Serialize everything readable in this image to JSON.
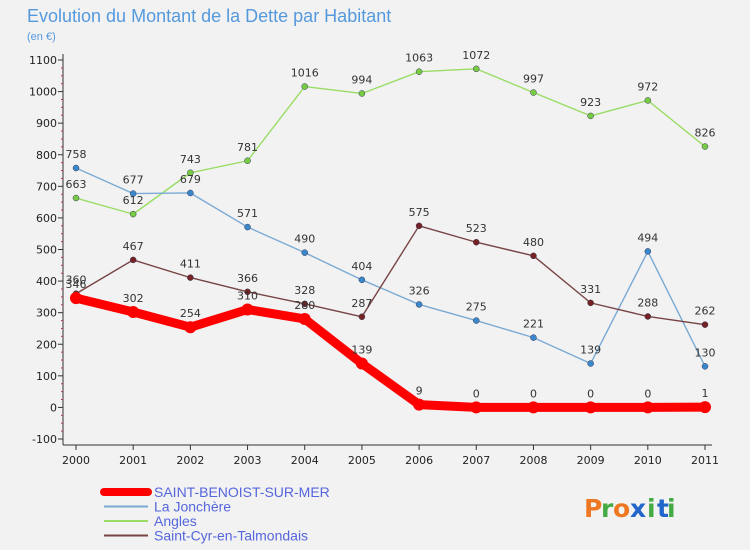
{
  "chart_data": {
    "type": "line",
    "title": "Evolution du Montant de la Dette par Habitant",
    "subtitle": "(en €)",
    "xlabel": "",
    "ylabel": "",
    "x": [
      "2000",
      "2001",
      "2002",
      "2003",
      "2004",
      "2005",
      "2006",
      "2007",
      "2008",
      "2009",
      "2010",
      "2011"
    ],
    "ylim": [
      -100,
      1100
    ],
    "yticks": [
      -100,
      0,
      100,
      200,
      300,
      400,
      500,
      600,
      700,
      800,
      900,
      1000,
      1100
    ],
    "grid": false,
    "legend_position": "bottom-left",
    "series": [
      {
        "name": "Angles",
        "color": "#99dd66",
        "marker": "#77cc44",
        "thick": false,
        "values": [
          663,
          612,
          743,
          781,
          1016,
          994,
          1063,
          1072,
          997,
          923,
          972,
          826
        ]
      },
      {
        "name": "La Jonchère",
        "color": "#7aaad4",
        "marker": "#3a88cc",
        "thick": false,
        "values": [
          758,
          677,
          679,
          571,
          490,
          404,
          326,
          275,
          221,
          139,
          494,
          130
        ]
      },
      {
        "name": "Saint-Cyr-en-Talmondais",
        "color": "#774444",
        "marker": "#772222",
        "thick": false,
        "values": [
          360,
          467,
          411,
          366,
          328,
          287,
          575,
          523,
          480,
          331,
          288,
          262
        ]
      },
      {
        "name": "SAINT-BENOIST-SUR-MER",
        "color": "#ff0000",
        "marker": "#ff0000",
        "thick": true,
        "values": [
          346,
          302,
          254,
          310,
          280,
          139,
          9,
          0,
          0,
          0,
          0,
          1
        ]
      }
    ],
    "legend_order": [
      "SAINT-BENOIST-SUR-MER",
      "La Jonchère",
      "Angles",
      "Saint-Cyr-en-Talmondais"
    ]
  },
  "logo": {
    "text": "Proxiti",
    "letters": [
      "P",
      "r",
      "o",
      "x",
      "i",
      "t",
      "i"
    ],
    "colors": [
      "#ee7722",
      "#44aa44",
      "#ee7722",
      "#2266cc",
      "#44aa44",
      "#2266cc",
      "#44aa44"
    ]
  }
}
